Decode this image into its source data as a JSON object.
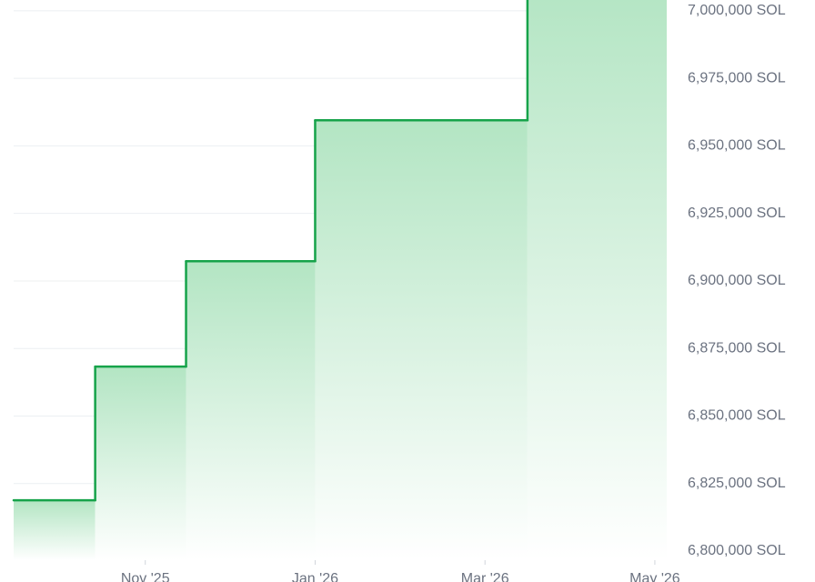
{
  "chart_data": {
    "type": "step-area",
    "x": [
      8.45,
      9.41,
      10.48,
      12.0,
      14.5
    ],
    "xlim": [
      8.45,
      16.14
    ],
    "xticks": [
      {
        "value": 10,
        "label": "Nov '25"
      },
      {
        "value": 12,
        "label": "Jan '26"
      },
      {
        "value": 14,
        "label": "Mar '26"
      },
      {
        "value": 16,
        "label": "May '26"
      }
    ],
    "series": [
      {
        "color": "#16a34a",
        "values": [
          6818800,
          6868300,
          6907300,
          6959500,
          7010000
        ]
      }
    ],
    "ylim": [
      6800000,
      7004000
    ],
    "yticks": [
      {
        "value": 6800000,
        "label": "6,800,000 SOL"
      },
      {
        "value": 6825000,
        "label": "6,825,000 SOL"
      },
      {
        "value": 6850000,
        "label": "6,850,000 SOL"
      },
      {
        "value": 6875000,
        "label": "6,875,000 SOL"
      },
      {
        "value": 6900000,
        "label": "6,900,000 SOL"
      },
      {
        "value": 6925000,
        "label": "6,925,000 SOL"
      },
      {
        "value": 6950000,
        "label": "6,950,000 SOL"
      },
      {
        "value": 6975000,
        "label": "6,975,000 SOL"
      },
      {
        "value": 7000000,
        "label": "7,000,000 SOL"
      }
    ],
    "grid": true
  }
}
